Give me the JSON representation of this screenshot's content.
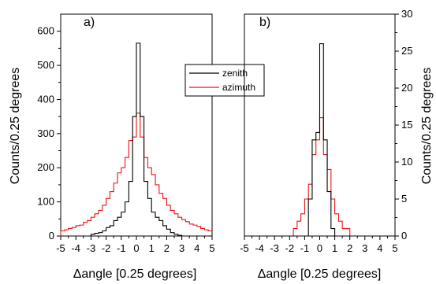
{
  "chart_data": [
    {
      "type": "step",
      "panel_label": "a)",
      "xlabel": "Δangle [0.25 degrees]",
      "ylabel": "Counts/0.25 degrees",
      "xlim": [
        -5,
        5
      ],
      "ylim": [
        0,
        650
      ],
      "xticks": [
        "-5",
        "-4",
        "-3",
        "-2",
        "-1",
        "0",
        "1",
        "2",
        "3",
        "4",
        "5"
      ],
      "yticks": [
        "0",
        "100",
        "200",
        "300",
        "400",
        "500",
        "600"
      ],
      "bin_width": 0.25,
      "bin_edges_start": -5,
      "legend": {
        "position": "center-right",
        "entries": [
          "zenith",
          "azimuth"
        ]
      },
      "series": [
        {
          "name": "zenith",
          "color": "#000000",
          "values": [
            0,
            0,
            0,
            0,
            0,
            0,
            0,
            0,
            5,
            8,
            10,
            15,
            25,
            30,
            45,
            55,
            70,
            100,
            160,
            350,
            565,
            350,
            160,
            110,
            70,
            55,
            45,
            30,
            20,
            10,
            5,
            2,
            0,
            0,
            0,
            0,
            0,
            0,
            0,
            0
          ]
        },
        {
          "name": "azimuth",
          "color": "#ee1111",
          "values": [
            15,
            18,
            22,
            25,
            30,
            32,
            40,
            45,
            55,
            65,
            75,
            90,
            110,
            130,
            155,
            185,
            200,
            230,
            280,
            290,
            360,
            290,
            230,
            200,
            180,
            150,
            125,
            110,
            90,
            75,
            65,
            55,
            48,
            42,
            35,
            32,
            28,
            22,
            18,
            15
          ]
        }
      ]
    },
    {
      "type": "step",
      "panel_label": "b)",
      "xlabel": "Δangle [0.25 degrees]",
      "ylabel": "Counts/0.25 degrees",
      "xlim": [
        -5,
        5
      ],
      "ylim": [
        0,
        30
      ],
      "xticks": [
        "-5",
        "-4",
        "-3",
        "-2",
        "-1",
        "0",
        "1",
        "2",
        "3",
        "4",
        "5"
      ],
      "yticks": [
        "0",
        "5",
        "10",
        "15",
        "20",
        "25",
        "30"
      ],
      "bin_width": 0.25,
      "bin_edges_start": -5,
      "series": [
        {
          "name": "zenith",
          "color": "#000000",
          "values": [
            0,
            0,
            0,
            0,
            0,
            0,
            0,
            0,
            0,
            0,
            0,
            0,
            0,
            0,
            0,
            0,
            0,
            5,
            13,
            14,
            26,
            13,
            6,
            1,
            0,
            0,
            0,
            0,
            0,
            0,
            0,
            0,
            0,
            0,
            0,
            0,
            0,
            0,
            0,
            0
          ]
        },
        {
          "name": "azimuth",
          "color": "#ee1111",
          "values": [
            0,
            0,
            0,
            0,
            0,
            0,
            0,
            0,
            0,
            0,
            0,
            0,
            0,
            1,
            2,
            3,
            5,
            7,
            11,
            13,
            16,
            11,
            9,
            5,
            3,
            2,
            1,
            1,
            0,
            0,
            0,
            0,
            0,
            0,
            0,
            0,
            0,
            0,
            0,
            0
          ]
        }
      ]
    }
  ]
}
